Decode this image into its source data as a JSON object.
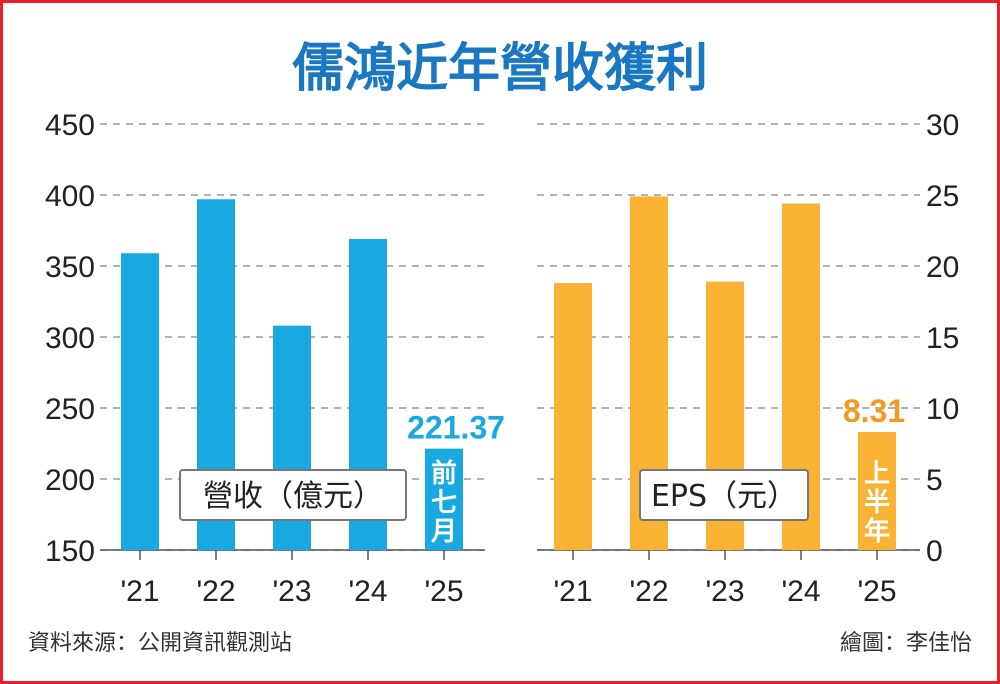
{
  "header": {
    "title": "儒鴻近年營收獲利"
  },
  "footer": {
    "source": "資料來源：公開資訊觀測站",
    "credit": "繪圖：李佳怡"
  },
  "colors": {
    "revenue": "#19a9e1",
    "eps": "#f9b233",
    "eps_label": "#f39a1e",
    "title": "#1a78c2",
    "border": "#e8202a"
  },
  "chart_data": [
    {
      "type": "bar",
      "legend": "營收（億元）",
      "categories": [
        "'21",
        "'22",
        "'23",
        "'24",
        "'25"
      ],
      "values": [
        359,
        397,
        308,
        369,
        221.37
      ],
      "ylim": [
        150,
        450
      ],
      "yticks": [
        "150",
        "200",
        "250",
        "300",
        "350",
        "400",
        "450"
      ],
      "grid": true,
      "data_label": "221.37",
      "period_note": "前七月"
    },
    {
      "type": "bar",
      "legend": "EPS（元）",
      "categories": [
        "'21",
        "'22",
        "'23",
        "'24",
        "'25"
      ],
      "values": [
        18.8,
        24.9,
        18.9,
        24.4,
        8.31
      ],
      "ylim": [
        0,
        30
      ],
      "yticks": [
        "0",
        "5",
        "10",
        "15",
        "20",
        "25",
        "30"
      ],
      "grid": true,
      "data_label": "8.31",
      "period_note": "上半年"
    }
  ]
}
